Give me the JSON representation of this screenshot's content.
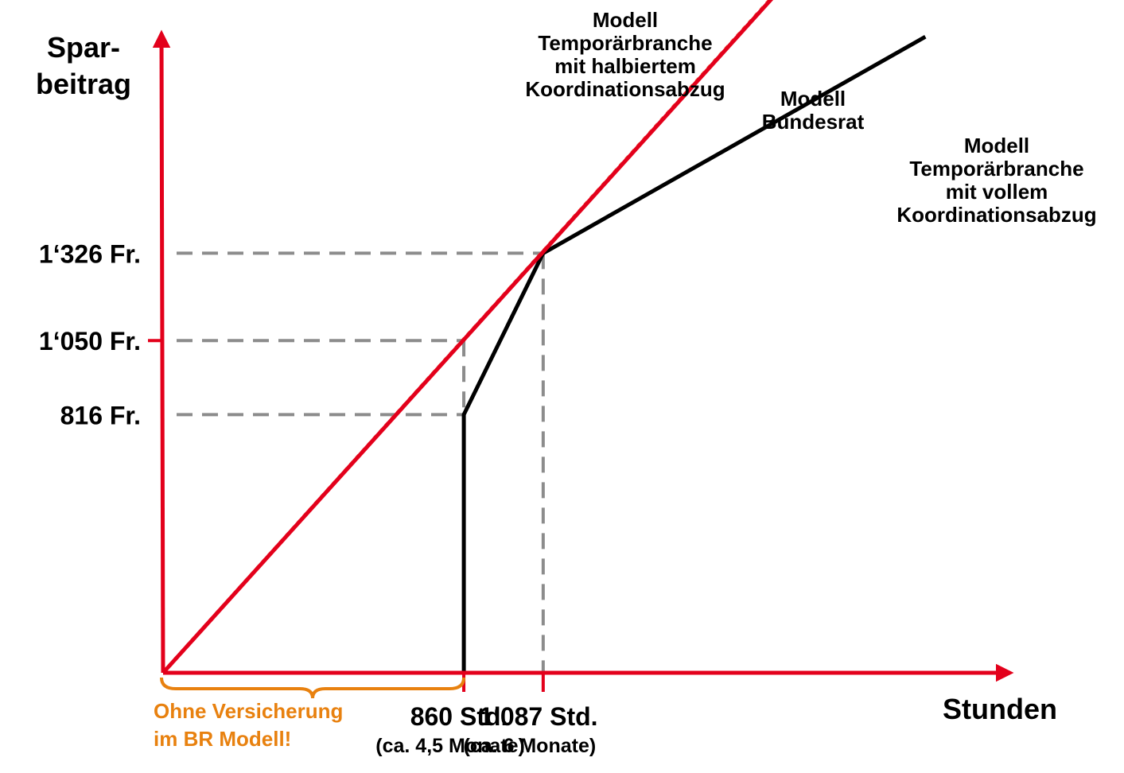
{
  "chart_data": {
    "type": "line",
    "ylabel": [
      "Spar-",
      "beitrag"
    ],
    "xlabel": "Stunden",
    "xlim": [
      0,
      2930
    ],
    "ylim": [
      0,
      2040
    ],
    "colors": {
      "axis": "#e3001b",
      "guide": "#8c8c8c",
      "orange": "#e8810f"
    },
    "series": [
      {
        "name": [
          "Modell",
          "Temporärbranche",
          "mit halbiertem",
          "Koordinationsabzug"
        ],
        "style": "dotted",
        "color": "#f26849",
        "x": [
          0,
          1755
        ],
        "y": [
          0,
          2150
        ]
      },
      {
        "name": [
          "Modell",
          "Bundesrat"
        ],
        "style": "solid",
        "color": "#000000",
        "x": [
          0,
          860,
          860,
          1087,
          2180
        ],
        "y": [
          0,
          0,
          816,
          1326,
          2010
        ]
      },
      {
        "name": [
          "Modell",
          "Temporärbranche",
          "mit vollem",
          "Koordinationsabzug"
        ],
        "style": "solid",
        "color": "#e3001b",
        "x": [
          0,
          2590
        ],
        "y": [
          0,
          3170
        ]
      }
    ],
    "y_markers": [
      {
        "label": "1‘326 Fr.",
        "value": 1326,
        "x_end": 1087,
        "tick": false
      },
      {
        "label": "1‘050 Fr.",
        "value": 1050,
        "x_end": 860,
        "tick": true
      },
      {
        "label": "816 Fr.",
        "value": 816,
        "x_end": 860,
        "tick": false
      }
    ],
    "x_markers": [
      {
        "label": "860 Std.",
        "sublabel": "(ca. 4,5 Monate)",
        "value": 860,
        "y_end": 1050
      },
      {
        "label": "1‘087 Std.",
        "sublabel": "(ca. 6 Monate)",
        "value": 1087,
        "y_end": 1326
      }
    ],
    "annotation": {
      "lines": [
        "Ohne Versicherung",
        "im BR Modell!"
      ],
      "x_range": [
        0,
        860
      ]
    }
  }
}
